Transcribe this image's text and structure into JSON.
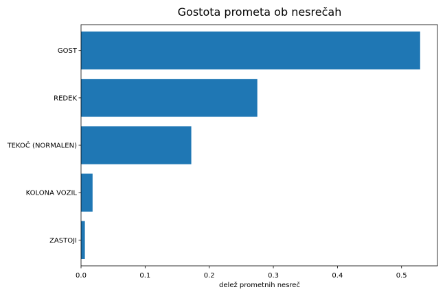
{
  "chart_data": {
    "type": "bar",
    "orientation": "horizontal",
    "title": "Gostota prometa ob nesrečah",
    "xlabel": "delež prometnih nesreč",
    "ylabel": "",
    "categories": [
      "GOST",
      "REDEK",
      "TEKOČ (NORMALEN)",
      "KOLONA VOZIL",
      "ZASTOJI"
    ],
    "values": [
      0.529,
      0.275,
      0.172,
      0.018,
      0.006
    ],
    "xlim": [
      0,
      0.556
    ],
    "xticks": [
      0.0,
      0.1,
      0.2,
      0.3,
      0.4,
      0.5
    ],
    "xtick_labels": [
      "0.0",
      "0.1",
      "0.2",
      "0.3",
      "0.4",
      "0.5"
    ],
    "grid": false,
    "bar_color": "#1f77b4"
  }
}
